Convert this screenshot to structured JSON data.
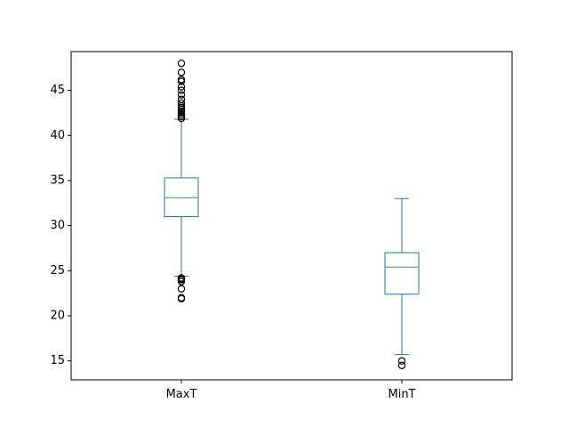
{
  "chart_data": {
    "type": "box",
    "title": "",
    "xlabel": "",
    "ylabel": "",
    "categories": [
      "MaxT",
      "MinT"
    ],
    "ylim": [
      12.9,
      49.3
    ],
    "yticks": [
      15,
      20,
      25,
      30,
      35,
      40,
      45
    ],
    "grid": false,
    "boxes": [
      {
        "name": "MaxT",
        "whisker_low": 24.4,
        "q1": 31.0,
        "median": 33.1,
        "q3": 35.3,
        "whisker_high": 41.8,
        "outliers": [
          21.9,
          22.0,
          23.0,
          23.8,
          24.0,
          24.1,
          24.2,
          41.9,
          42.1,
          42.3,
          42.5,
          42.7,
          42.9,
          43.1,
          43.3,
          43.6,
          44.0,
          44.5,
          45.0,
          45.4,
          46.0,
          46.2,
          47.0,
          48.0
        ]
      },
      {
        "name": "MinT",
        "whisker_low": 15.7,
        "q1": 22.4,
        "median": 25.4,
        "q3": 27.0,
        "whisker_high": 33.0,
        "outliers": [
          14.5,
          15.0
        ]
      }
    ],
    "colors": {
      "box": "#1f77b4",
      "median": "#2ca02c",
      "outlier": "#000000",
      "axes": "#000000"
    }
  }
}
